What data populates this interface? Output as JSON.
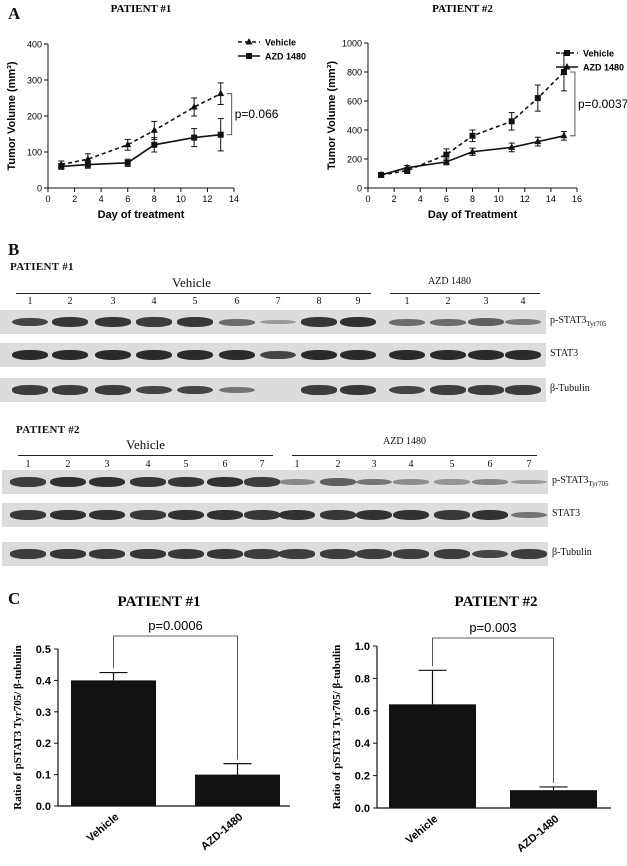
{
  "panels": {
    "a": "A",
    "b": "B",
    "c": "C"
  },
  "chart_data": [
    {
      "id": "growth1",
      "type": "line",
      "title": "PATIENT #1",
      "xlabel": "Day of treatment",
      "ylabel": "Tumor Volume (mm³)",
      "xlim": [
        0,
        14
      ],
      "ylim": [
        0,
        400
      ],
      "xticks": [
        0,
        2,
        4,
        6,
        8,
        10,
        12,
        14
      ],
      "yticks": [
        0,
        100,
        200,
        300,
        400
      ],
      "series": [
        {
          "name": "Vehicle",
          "style": "dashed",
          "marker": "triangle",
          "x": [
            1,
            3,
            6,
            8,
            11,
            13
          ],
          "y": [
            65,
            80,
            120,
            160,
            225,
            262
          ],
          "err": [
            10,
            15,
            15,
            25,
            25,
            30
          ]
        },
        {
          "name": "AZD 1480",
          "style": "solid",
          "marker": "square",
          "x": [
            1,
            3,
            6,
            8,
            11,
            13
          ],
          "y": [
            60,
            65,
            70,
            120,
            140,
            148
          ],
          "err": [
            8,
            10,
            10,
            20,
            25,
            45
          ]
        }
      ],
      "annotation": "p=0.066"
    },
    {
      "id": "growth2",
      "type": "line",
      "title": "PATIENT #2",
      "xlabel": "Day of Treatment",
      "ylabel": "Tumor Volume (mm³)",
      "xlim": [
        0,
        16
      ],
      "ylim": [
        0,
        1000
      ],
      "xticks": [
        0,
        2,
        4,
        6,
        8,
        10,
        12,
        14,
        16
      ],
      "yticks": [
        0,
        200,
        400,
        600,
        800,
        1000
      ],
      "series": [
        {
          "name": "Vehicle",
          "style": "dashed",
          "marker": "square",
          "x": [
            1,
            3,
            6,
            8,
            11,
            13,
            15
          ],
          "y": [
            90,
            120,
            230,
            360,
            460,
            620,
            800
          ],
          "err": [
            10,
            20,
            40,
            40,
            60,
            90,
            130
          ]
        },
        {
          "name": "AZD 1480",
          "style": "solid",
          "marker": "triangle",
          "x": [
            1,
            3,
            6,
            8,
            11,
            13,
            15
          ],
          "y": [
            90,
            140,
            180,
            250,
            280,
            320,
            360
          ],
          "err": [
            10,
            15,
            20,
            25,
            30,
            30,
            30
          ]
        }
      ],
      "annotation": "p=0.0037"
    },
    {
      "id": "bar1",
      "type": "bar",
      "title": "PATIENT #1",
      "ylabel": "Ratio of pSTAT3 Tyr705/ β-tubulin",
      "categories": [
        "Vehicle",
        "AZD-1480"
      ],
      "values": [
        0.4,
        0.1
      ],
      "err": [
        0.025,
        0.035
      ],
      "ylim": [
        0,
        0.5
      ],
      "yticks": [
        "0.0",
        "0.1",
        "0.2",
        "0.3",
        "0.4",
        "0.5"
      ],
      "annotation": "p=0.0006"
    },
    {
      "id": "bar2",
      "type": "bar",
      "title": "PATIENT #2",
      "ylabel": "Ratio of pSTAT3 Tyr705/ β-tubulin",
      "categories": [
        "Vehicle",
        "AZD-1480"
      ],
      "values": [
        0.64,
        0.11
      ],
      "err": [
        0.21,
        0.02
      ],
      "ylim": [
        0,
        1.0
      ],
      "yticks": [
        "0.0",
        "0.2",
        "0.4",
        "0.6",
        "0.8",
        "1.0"
      ],
      "annotation": "p=0.003"
    }
  ],
  "blots": {
    "patient1": {
      "label": "PATIENT #1",
      "vehicle_label": "Vehicle",
      "azd_label": "AZD 1480",
      "lanes_vehicle": [
        "1",
        "2",
        "3",
        "4",
        "5",
        "6",
        "7",
        "8",
        "9"
      ],
      "lanes_azd": [
        "1",
        "2",
        "3",
        "4"
      ],
      "rows": [
        {
          "label_main": "p-STAT3",
          "label_sub": "Tyr705",
          "intensity": [
            0.8,
            0.9,
            0.9,
            0.85,
            0.9,
            0.5,
            0.15,
            0.9,
            0.95,
            0.5,
            0.5,
            0.6,
            0.4
          ]
        },
        {
          "label_main": "STAT3",
          "label_sub": "",
          "intensity": [
            1,
            1,
            1,
            1,
            1,
            1,
            0.8,
            1,
            1,
            1,
            1,
            1,
            1
          ]
        },
        {
          "label_main": "β-Tubulin",
          "label_sub": "",
          "intensity": [
            0.85,
            0.85,
            0.85,
            0.8,
            0.8,
            0.45,
            0,
            0.85,
            0.9,
            0.8,
            0.85,
            0.85,
            0.85
          ]
        }
      ]
    },
    "patient2": {
      "label": "PATIENT #2",
      "vehicle_label": "Vehicle",
      "azd_label": "AZD 1480",
      "lanes_vehicle": [
        "1",
        "2",
        "3",
        "4",
        "5",
        "6",
        "7"
      ],
      "lanes_azd": [
        "1",
        "2",
        "3",
        "4",
        "5",
        "6",
        "7"
      ],
      "rows": [
        {
          "label_main": "p-STAT3",
          "label_sub": "Tyr705",
          "intensity": [
            0.85,
            0.95,
            0.95,
            0.9,
            0.9,
            0.95,
            0.85,
            0.3,
            0.6,
            0.45,
            0.25,
            0.2,
            0.3,
            0.15
          ]
        },
        {
          "label_main": "STAT3",
          "label_sub": "",
          "intensity": [
            0.9,
            0.95,
            0.95,
            0.9,
            0.95,
            0.95,
            0.9,
            0.95,
            0.9,
            0.95,
            0.95,
            0.9,
            0.95,
            0.45
          ]
        },
        {
          "label_main": "β-Tubulin",
          "label_sub": "",
          "intensity": [
            0.85,
            0.9,
            0.9,
            0.9,
            0.9,
            0.9,
            0.85,
            0.85,
            0.85,
            0.85,
            0.85,
            0.85,
            0.8,
            0.85
          ]
        }
      ]
    }
  }
}
